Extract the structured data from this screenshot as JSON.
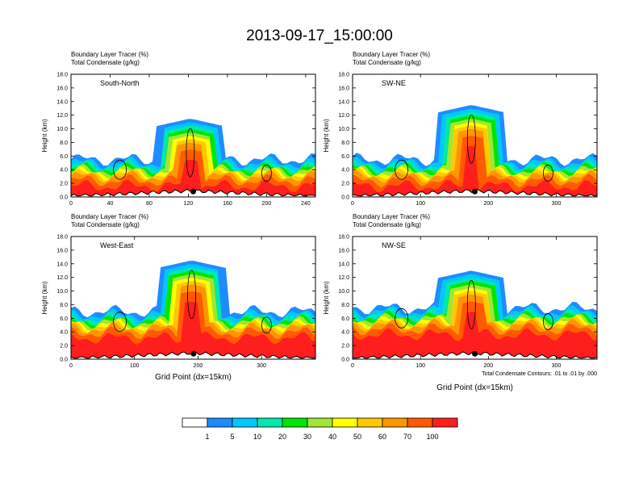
{
  "figure": {
    "title": "2013-09-17_15:00:00",
    "note": "Total Condensate Contours: .01 to .01 by .000"
  },
  "colorbar": {
    "labels": [
      "1",
      "5",
      "10",
      "20",
      "30",
      "40",
      "50",
      "60",
      "70",
      "100"
    ],
    "colors": [
      "#ffffff",
      "#1e8cff",
      "#00c8ff",
      "#00e8b0",
      "#00e600",
      "#a0e632",
      "#ffff00",
      "#ffc800",
      "#ff9600",
      "#ff5a00",
      "#ff1e1e"
    ]
  },
  "chart_data": [
    {
      "type": "contour-cross-section",
      "panel_label": "South-North",
      "title_left_1": "Boundary Layer Tracer   (%)",
      "title_left_2": "Total Condensate   (g/kg)",
      "ylabel": "Height (km)",
      "xlabel": "",
      "xlim": [
        0,
        250
      ],
      "xticks": [
        "0",
        "40",
        "80",
        "120",
        "160",
        "200",
        "240"
      ],
      "ylim": [
        0,
        18
      ],
      "yticks": [
        "0.0",
        "2.0",
        "4.0",
        "6.0",
        "8.0",
        "10.0",
        "12.0",
        "14.0",
        "16.0",
        "18.0"
      ],
      "marker_x": 125,
      "tower_x": 122,
      "plume_top_km": 9.5,
      "boundary_layer_top_km": 3.0
    },
    {
      "type": "contour-cross-section",
      "panel_label": "SW-NE",
      "title_left_1": "Boundary Layer Tracer   (%)",
      "title_left_2": "Total Condensate   (g/kg)",
      "ylabel": "Height (km)",
      "xlabel": "",
      "xlim": [
        0,
        360
      ],
      "xticks": [
        "0",
        "100",
        "200",
        "300"
      ],
      "ylim": [
        0,
        18
      ],
      "yticks": [
        "0.0",
        "2.0",
        "4.0",
        "6.0",
        "8.0",
        "10.0",
        "12.0",
        "14.0",
        "16.0",
        "18.0"
      ],
      "marker_x": 180,
      "tower_x": 175,
      "plume_top_km": 11.5,
      "boundary_layer_top_km": 3.0
    },
    {
      "type": "contour-cross-section",
      "panel_label": "West-East",
      "title_left_1": "Boundary Layer Tracer   (%)",
      "title_left_2": "Total Condensate   (g/kg)",
      "ylabel": "Height (km)",
      "xlabel": "Grid Point (dx=15km)",
      "xlim": [
        0,
        385
      ],
      "xticks": [
        "0",
        "100",
        "200",
        "300"
      ],
      "ylim": [
        0,
        18
      ],
      "yticks": [
        "0.0",
        "2.0",
        "4.0",
        "6.0",
        "8.0",
        "10.0",
        "12.0",
        "14.0",
        "16.0",
        "18.0"
      ],
      "marker_x": 193,
      "tower_x": 190,
      "plume_top_km": 12.5,
      "boundary_layer_top_km": 4.5
    },
    {
      "type": "contour-cross-section",
      "panel_label": "NW-SE",
      "title_left_1": "Boundary Layer Tracer   (%)",
      "title_left_2": "Total Condensate   (g/kg)",
      "ylabel": "Height (km)",
      "xlabel": "Grid Point (dx=15km)",
      "xlim": [
        0,
        360
      ],
      "xticks": [
        "0",
        "100",
        "200",
        "300"
      ],
      "ylim": [
        0,
        18
      ],
      "yticks": [
        "0.0",
        "2.0",
        "4.0",
        "6.0",
        "8.0",
        "10.0",
        "12.0",
        "14.0",
        "16.0",
        "18.0"
      ],
      "marker_x": 180,
      "tower_x": 175,
      "plume_top_km": 11.0,
      "boundary_layer_top_km": 5.0
    }
  ]
}
